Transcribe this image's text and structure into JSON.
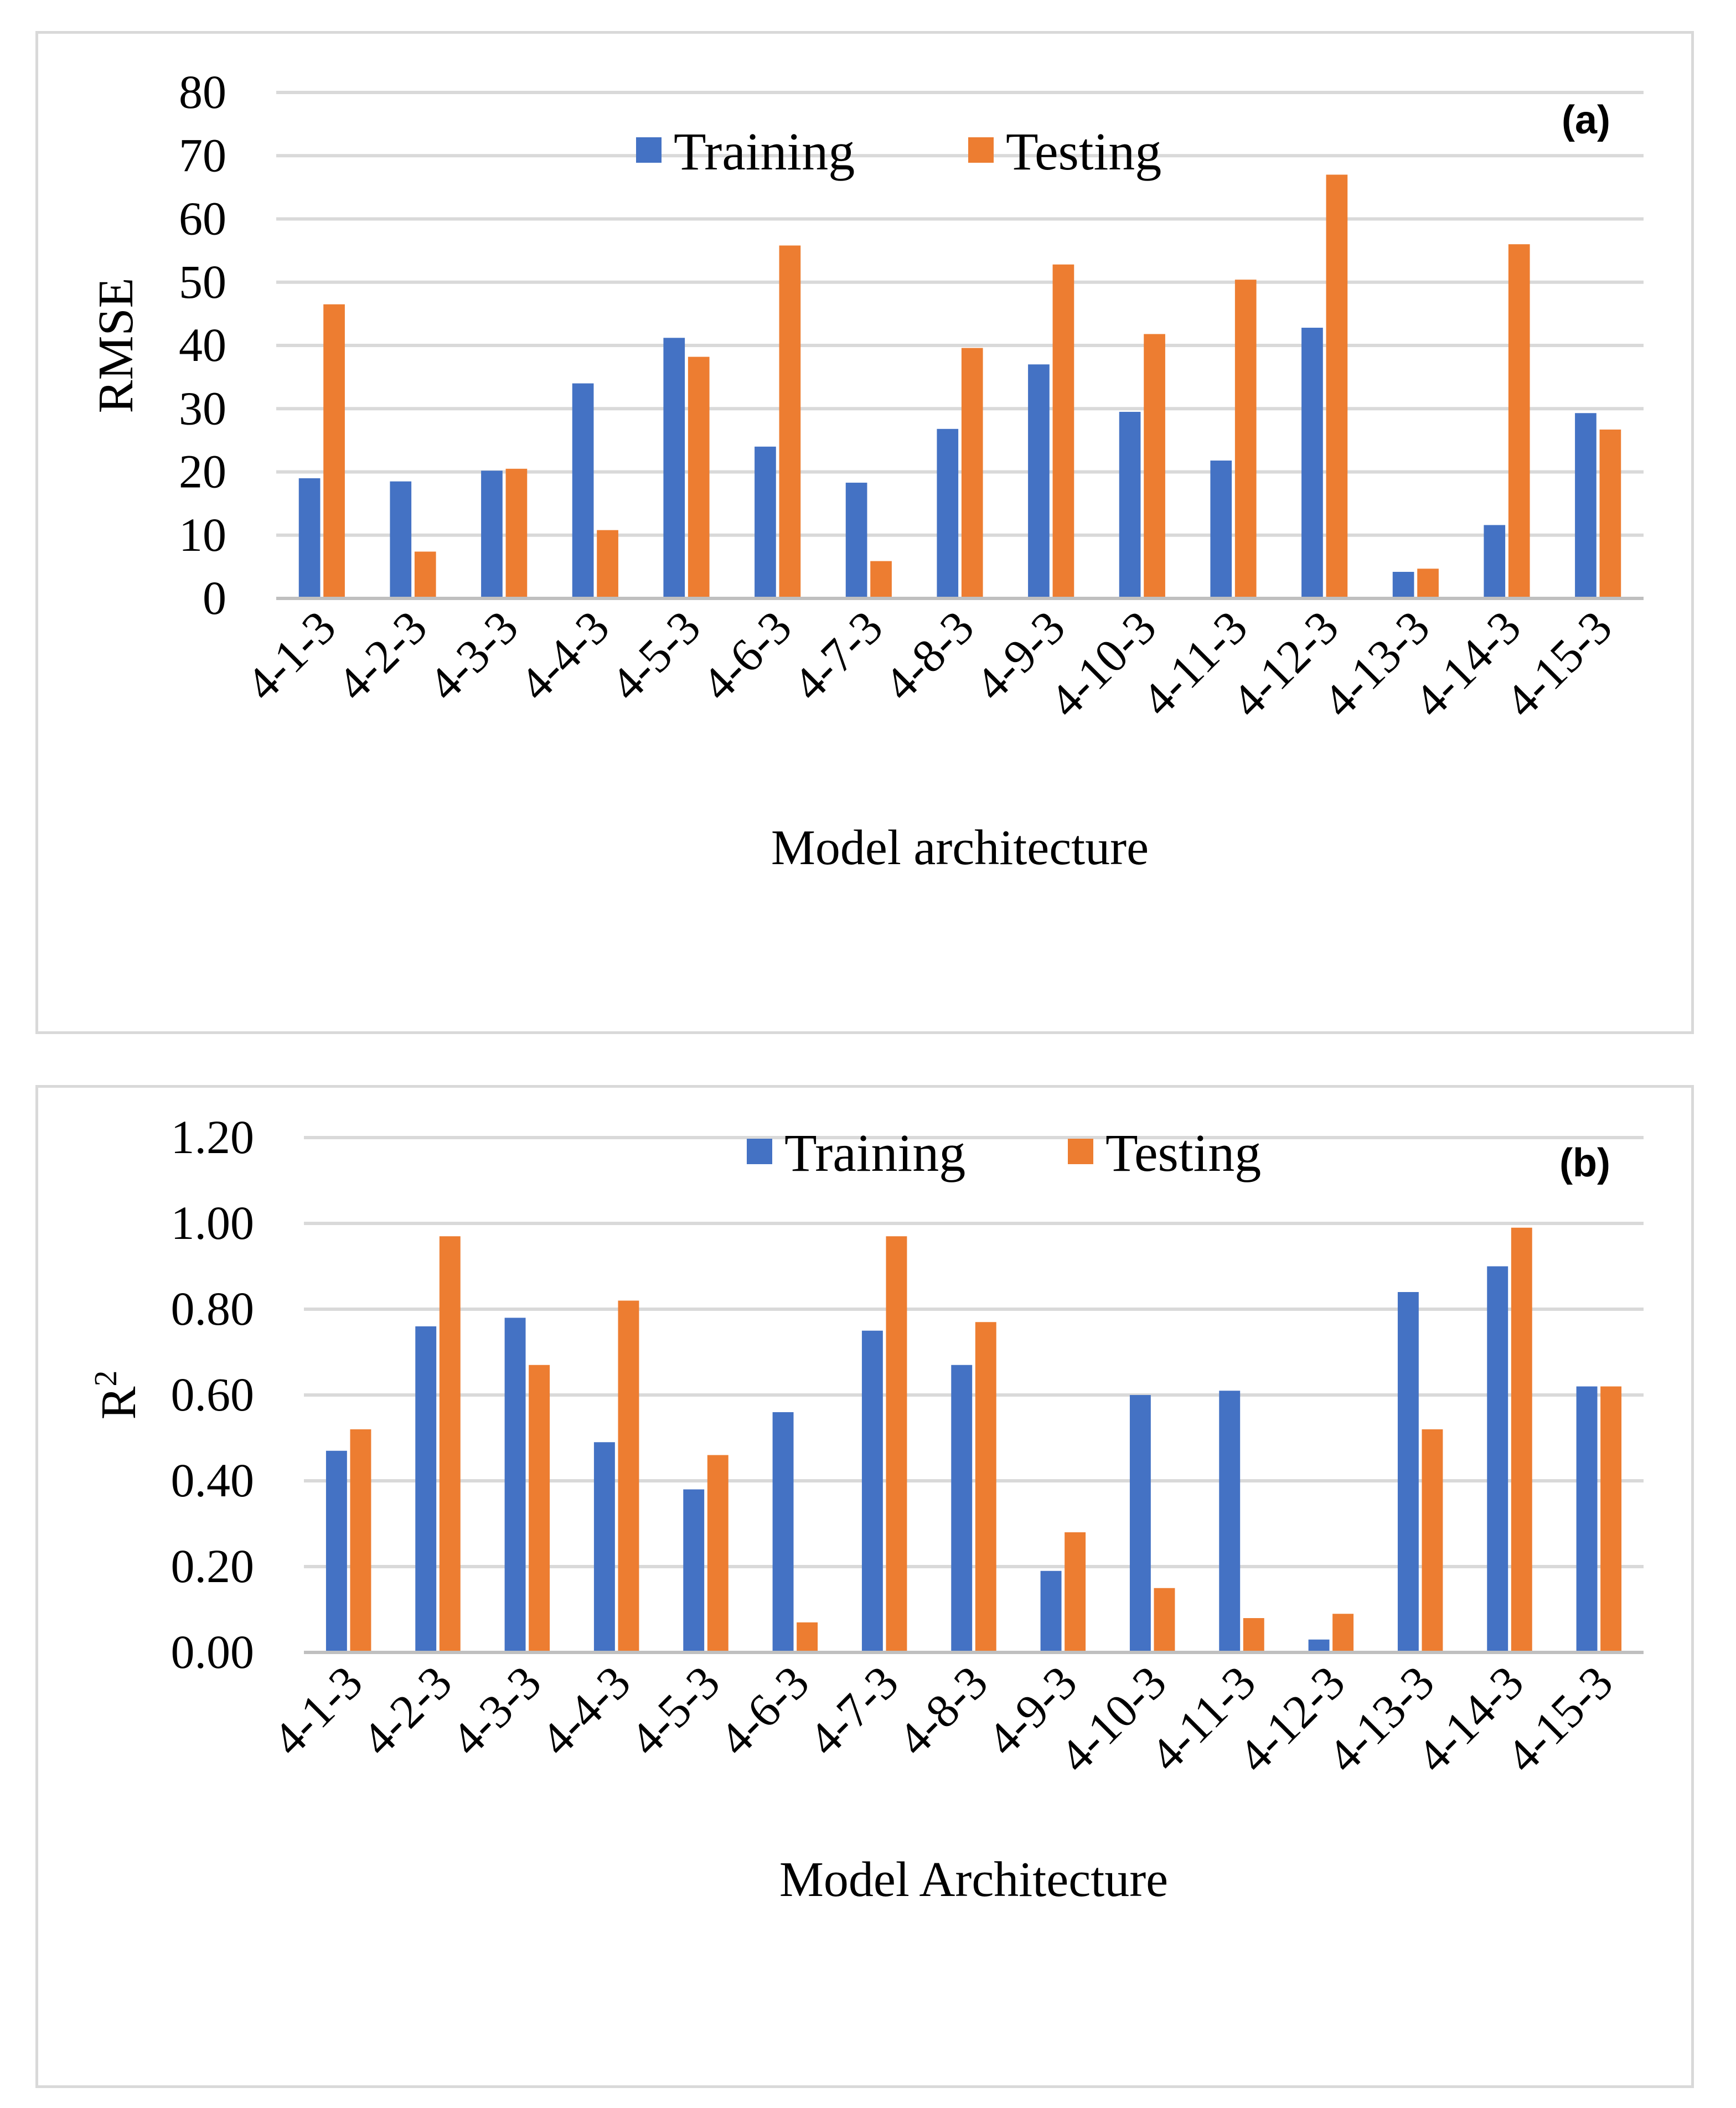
{
  "colors": {
    "training": "#4472C4",
    "testing": "#ED7D31"
  },
  "chart_data": [
    {
      "id": "rmse-chart",
      "panel_label": "(a)",
      "type": "bar",
      "ylabel": "RMSE",
      "xlabel": "Model architecture",
      "ylim": [
        0,
        80
      ],
      "yticks": [
        "0",
        "10",
        "20",
        "30",
        "40",
        "50",
        "60",
        "70",
        "80"
      ],
      "ytick_values": [
        0,
        10,
        20,
        30,
        40,
        50,
        60,
        70,
        80
      ],
      "grid": true,
      "legend_position": "top-center",
      "categories": [
        "4-1-3",
        "4-2-3",
        "4-3-3",
        "4-4-3",
        "4-5-3",
        "4-6-3",
        "4-7-3",
        "4-8-3",
        "4-9-3",
        "4-10-3",
        "4-11-3",
        "4-12-3",
        "4-13-3",
        "4-14-3",
        "4-15-3"
      ],
      "series": [
        {
          "name": "Training",
          "values": [
            19.0,
            18.5,
            20.2,
            34.0,
            41.2,
            24.0,
            18.3,
            26.8,
            37.0,
            29.5,
            21.8,
            42.8,
            4.2,
            11.6,
            29.3
          ]
        },
        {
          "name": "Testing",
          "values": [
            46.5,
            7.4,
            20.5,
            10.8,
            38.2,
            55.8,
            5.9,
            39.6,
            52.8,
            41.8,
            50.4,
            67.0,
            4.7,
            56.0,
            26.7
          ]
        }
      ]
    },
    {
      "id": "r2-chart",
      "panel_label": "(b)",
      "type": "bar",
      "ylabel": "R",
      "ylabel_sup": "2",
      "xlabel": "Model Architecture",
      "ylim": [
        0,
        1.2
      ],
      "yticks": [
        "0.00",
        "0.20",
        "0.40",
        "0.60",
        "0.80",
        "1.00",
        "1.20"
      ],
      "ytick_values": [
        0,
        0.2,
        0.4,
        0.6,
        0.8,
        1.0,
        1.2
      ],
      "grid": true,
      "legend_position": "top-center",
      "categories": [
        "4-1-3",
        "4-2-3",
        "4-3-3",
        "4-4-3",
        "4-5-3",
        "4-6-3",
        "4-7-3",
        "4-8-3",
        "4-9-3",
        "4-10-3",
        "4-11-3",
        "4-12-3",
        "4-13-3",
        "4-14-3",
        "4-15-3"
      ],
      "series": [
        {
          "name": "Training",
          "values": [
            0.47,
            0.76,
            0.78,
            0.49,
            0.38,
            0.56,
            0.75,
            0.67,
            0.19,
            0.6,
            0.61,
            0.03,
            0.84,
            0.9,
            0.62
          ]
        },
        {
          "name": "Testing",
          "values": [
            0.52,
            0.97,
            0.67,
            0.82,
            0.46,
            0.07,
            0.97,
            0.77,
            0.28,
            0.15,
            0.08,
            0.09,
            0.52,
            0.99,
            0.62
          ]
        }
      ]
    }
  ]
}
